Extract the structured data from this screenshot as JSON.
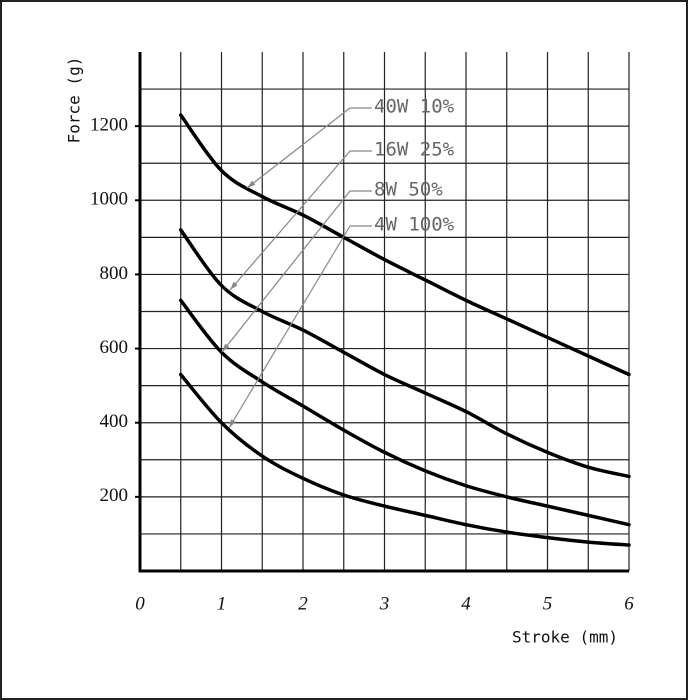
{
  "chart_data": {
    "type": "line",
    "x_label": "Stroke (mm)",
    "y_label": "Force (g)",
    "xlim": [
      0,
      6
    ],
    "ylim": [
      0,
      1400
    ],
    "xticks": [
      0,
      1,
      2,
      3,
      4,
      5,
      6
    ],
    "yticks": [
      200,
      400,
      600,
      800,
      1000,
      1200
    ],
    "xgrid": [
      0.5,
      1,
      1.5,
      2,
      2.5,
      3,
      3.5,
      4,
      4.5,
      5,
      5.5,
      6
    ],
    "ygrid": [
      100,
      200,
      300,
      400,
      500,
      600,
      700,
      800,
      900,
      1000,
      1100,
      1200,
      1300
    ],
    "x": [
      0.5,
      1,
      1.5,
      2,
      2.5,
      3,
      3.5,
      4,
      4.5,
      5,
      5.5,
      6
    ],
    "series": [
      {
        "name": "40W 10%",
        "color": "#000000",
        "values": [
          1230,
          1080,
          1010,
          960,
          900,
          840,
          785,
          730,
          680,
          630,
          580,
          530
        ]
      },
      {
        "name": "16W 25%",
        "color": "#000000",
        "values": [
          920,
          770,
          700,
          650,
          590,
          530,
          480,
          430,
          370,
          320,
          280,
          255
        ]
      },
      {
        "name": "8W 50%",
        "color": "#000000",
        "values": [
          730,
          590,
          510,
          445,
          380,
          320,
          270,
          230,
          200,
          175,
          150,
          125
        ]
      },
      {
        "name": "4W 100%",
        "color": "#000000",
        "values": [
          530,
          400,
          310,
          250,
          205,
          175,
          150,
          125,
          105,
          90,
          78,
          70
        ]
      }
    ]
  }
}
